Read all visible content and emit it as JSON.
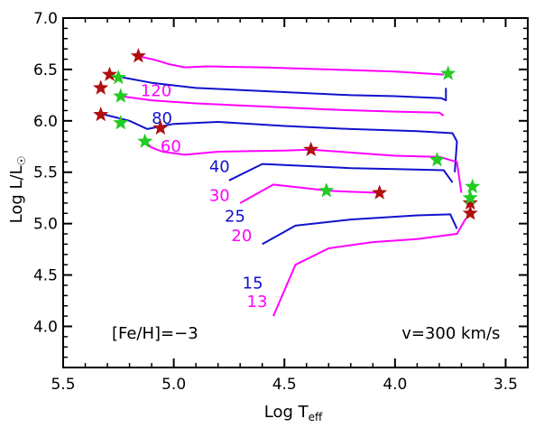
{
  "chart_data": {
    "type": "line",
    "title": "",
    "xlabel": "Log T",
    "xlabel_sub": "eff",
    "ylabel": "Log L/L",
    "ylabel_sun_symbol": "☉",
    "xlim": [
      5.5,
      3.4
    ],
    "ylim": [
      3.6,
      7.0
    ],
    "x_ticks": [
      5.5,
      5.0,
      4.5,
      4.0,
      3.5
    ],
    "x_tick_labels": [
      "5.5",
      "5.0",
      "4.5",
      "4.0",
      "3.5"
    ],
    "y_ticks": [
      4.0,
      4.5,
      5.0,
      5.5,
      6.0,
      6.5,
      7.0
    ],
    "y_tick_labels": [
      "4.0",
      "4.5",
      "5.0",
      "5.5",
      "6.0",
      "6.5",
      "7.0"
    ],
    "grid": false,
    "colors": {
      "magenta": "#ff00ff",
      "blue": "#1111cc",
      "red_star": "#b01010",
      "green_star": "#22cc22"
    },
    "annotations": [
      {
        "text": "[Fe/H]=−3",
        "x": 5.28,
        "y": 3.88
      },
      {
        "text": "v=300 km/s",
        "x": 3.97,
        "y": 3.88
      }
    ],
    "series": [
      {
        "name": "120",
        "color": "#ff00ff",
        "label_pos": [
          5.15,
          6.24
        ],
        "points": [
          [
            5.16,
            6.63
          ],
          [
            5.08,
            6.59
          ],
          [
            5.02,
            6.55
          ],
          [
            4.95,
            6.52
          ],
          [
            4.85,
            6.53
          ],
          [
            4.6,
            6.52
          ],
          [
            4.3,
            6.5
          ],
          [
            4.0,
            6.48
          ],
          [
            3.78,
            6.45
          ]
        ]
      },
      {
        "name": "80",
        "color": "#1111cc",
        "label_pos": [
          5.1,
          5.97
        ],
        "points": [
          [
            5.25,
            6.43
          ],
          [
            5.1,
            6.37
          ],
          [
            4.9,
            6.32
          ],
          [
            4.5,
            6.28
          ],
          [
            4.2,
            6.25
          ],
          [
            4.0,
            6.24
          ],
          [
            3.79,
            6.22
          ],
          [
            3.77,
            6.2
          ],
          [
            3.77,
            6.32
          ]
        ]
      },
      {
        "name": "60",
        "color": "#ff00ff",
        "label_pos": [
          5.06,
          5.7
        ],
        "points": [
          [
            5.24,
            6.24
          ],
          [
            5.1,
            6.2
          ],
          [
            4.9,
            6.17
          ],
          [
            4.6,
            6.14
          ],
          [
            4.3,
            6.11
          ],
          [
            4.0,
            6.09
          ],
          [
            3.8,
            6.08
          ],
          [
            3.78,
            6.05
          ]
        ]
      },
      {
        "name": "40",
        "color": "#1111cc",
        "label_pos": [
          4.84,
          5.5
        ],
        "points": [
          [
            5.33,
            6.07
          ],
          [
            5.2,
            6.0
          ],
          [
            5.12,
            5.92
          ],
          [
            5.0,
            5.97
          ],
          [
            4.8,
            5.99
          ],
          [
            4.5,
            5.95
          ],
          [
            4.2,
            5.92
          ],
          [
            3.9,
            5.9
          ],
          [
            3.74,
            5.88
          ],
          [
            3.72,
            5.8
          ],
          [
            3.73,
            5.5
          ]
        ]
      },
      {
        "name": "30",
        "color": "#ff00ff",
        "label_pos": [
          4.84,
          5.22
        ],
        "points": [
          [
            5.13,
            5.8
          ],
          [
            5.1,
            5.74
          ],
          [
            5.05,
            5.7
          ],
          [
            4.95,
            5.67
          ],
          [
            4.8,
            5.7
          ],
          [
            4.5,
            5.71
          ],
          [
            4.38,
            5.72
          ],
          [
            4.0,
            5.66
          ],
          [
            3.8,
            5.65
          ],
          [
            3.72,
            5.6
          ],
          [
            3.7,
            5.3
          ]
        ]
      },
      {
        "name": "25",
        "color": "#1111cc",
        "label_pos": [
          4.77,
          5.02
        ],
        "points": [
          [
            4.75,
            5.42
          ],
          [
            4.6,
            5.58
          ],
          [
            4.4,
            5.56
          ],
          [
            4.2,
            5.54
          ],
          [
            4.0,
            5.53
          ],
          [
            3.78,
            5.52
          ],
          [
            3.74,
            5.4
          ]
        ]
      },
      {
        "name": "20",
        "color": "#ff00ff",
        "label_pos": [
          4.74,
          4.83
        ],
        "points": [
          [
            4.7,
            5.2
          ],
          [
            4.55,
            5.38
          ],
          [
            4.3,
            5.32
          ],
          [
            4.2,
            5.31
          ],
          [
            4.07,
            5.3
          ]
        ]
      },
      {
        "name": "15",
        "color": "#1111cc",
        "label_pos": [
          4.69,
          4.37
        ],
        "points": [
          [
            4.6,
            4.8
          ],
          [
            4.45,
            4.98
          ],
          [
            4.2,
            5.04
          ],
          [
            3.9,
            5.08
          ],
          [
            3.75,
            5.09
          ],
          [
            3.72,
            4.95
          ]
        ]
      },
      {
        "name": "13",
        "color": "#ff00ff",
        "label_pos": [
          4.67,
          4.19
        ],
        "points": [
          [
            4.55,
            4.1
          ],
          [
            4.45,
            4.6
          ],
          [
            4.3,
            4.76
          ],
          [
            4.1,
            4.82
          ],
          [
            3.9,
            4.85
          ],
          [
            3.72,
            4.9
          ],
          [
            3.68,
            5.05
          ]
        ]
      }
    ],
    "markers": {
      "red_stars": [
        [
          5.16,
          6.63
        ],
        [
          5.29,
          6.45
        ],
        [
          5.33,
          6.32
        ],
        [
          5.33,
          6.06
        ],
        [
          5.06,
          5.93
        ],
        [
          4.38,
          5.72
        ],
        [
          4.07,
          5.3
        ],
        [
          3.66,
          5.2
        ],
        [
          3.66,
          5.1
        ]
      ],
      "green_stars": [
        [
          5.25,
          6.42
        ],
        [
          5.24,
          6.24
        ],
        [
          5.24,
          5.98
        ],
        [
          5.13,
          5.8
        ],
        [
          3.76,
          6.46
        ],
        [
          3.81,
          5.62
        ],
        [
          4.31,
          5.32
        ],
        [
          3.65,
          5.36
        ],
        [
          3.66,
          5.25
        ]
      ]
    }
  }
}
